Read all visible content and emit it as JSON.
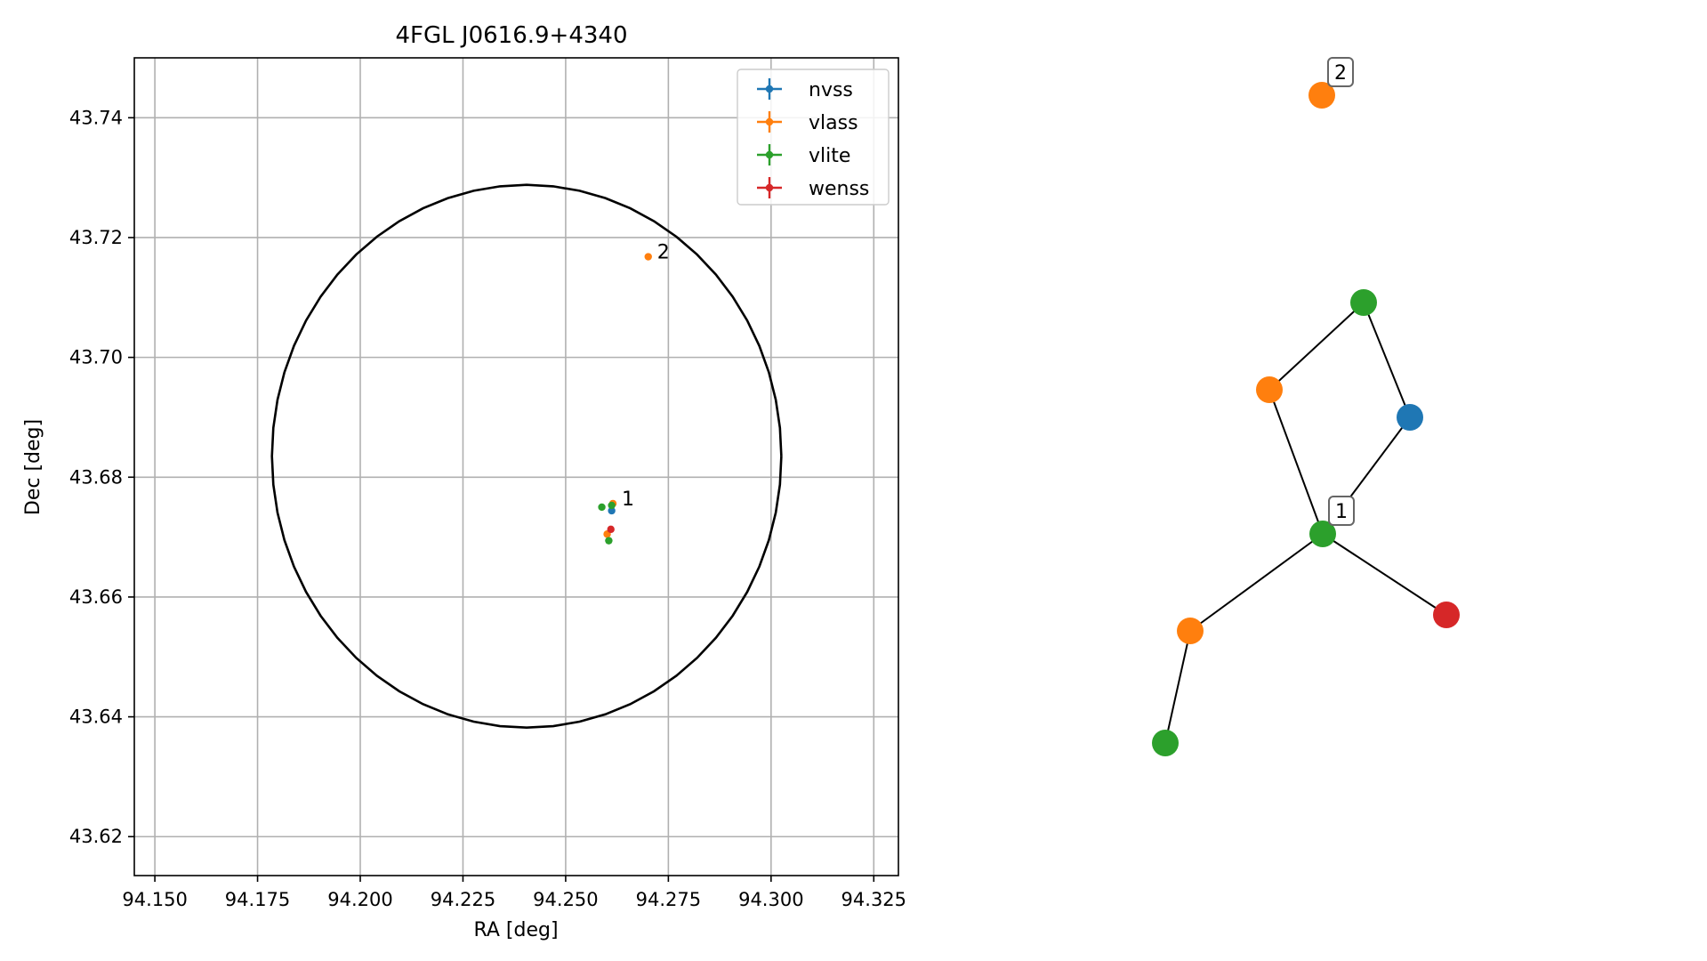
{
  "chart_data": [
    {
      "type": "scatter",
      "title": "4FGL J0616.9+4340",
      "xlabel": "RA [deg]",
      "ylabel": "Dec [deg]",
      "xlim": [
        94.145,
        94.331
      ],
      "ylim": [
        43.6135,
        43.75
      ],
      "x_ticks": [
        "94.150",
        "94.175",
        "94.200",
        "94.225",
        "94.250",
        "94.275",
        "94.300",
        "94.325"
      ],
      "y_ticks": [
        "43.62",
        "43.64",
        "43.66",
        "43.68",
        "43.70",
        "43.72",
        "43.74"
      ],
      "grid": true,
      "legend_position": "top-right",
      "localization_ellipse": {
        "center_ra": 94.2405,
        "center_dec": 43.6835,
        "semi_ra": 0.062,
        "semi_dec": 0.0453
      },
      "series": [
        {
          "name": "nvss",
          "color": "#1f77b4",
          "points": [
            {
              "x": 94.2612,
              "y": 43.6744
            }
          ]
        },
        {
          "name": "vlass",
          "color": "#ff7f0e",
          "points": [
            {
              "x": 94.2615,
              "y": 43.6756
            },
            {
              "x": 94.2601,
              "y": 43.6705
            },
            {
              "x": 94.2701,
              "y": 43.7168
            }
          ]
        },
        {
          "name": "vlite",
          "color": "#2ca02c",
          "points": [
            {
              "x": 94.2588,
              "y": 43.675
            },
            {
              "x": 94.2612,
              "y": 43.6753
            },
            {
              "x": 94.2605,
              "y": 43.6694
            }
          ]
        },
        {
          "name": "wenss",
          "color": "#d62728",
          "points": [
            {
              "x": 94.261,
              "y": 43.6713
            }
          ]
        }
      ],
      "annotations": [
        {
          "text": "1",
          "x": 94.2615,
          "y": 43.6756
        },
        {
          "text": "2",
          "x": 94.2701,
          "y": 43.7168
        }
      ]
    },
    {
      "type": "graph",
      "nodes": [
        {
          "id": "n0",
          "color": "#ff7f0e",
          "label": "2"
        },
        {
          "id": "n1",
          "color": "#2ca02c",
          "label": ""
        },
        {
          "id": "n2",
          "color": "#ff7f0e",
          "label": ""
        },
        {
          "id": "n3",
          "color": "#1f77b4",
          "label": ""
        },
        {
          "id": "n4",
          "color": "#2ca02c",
          "label": "1"
        },
        {
          "id": "n5",
          "color": "#ff7f0e",
          "label": ""
        },
        {
          "id": "n6",
          "color": "#d62728",
          "label": ""
        },
        {
          "id": "n7",
          "color": "#2ca02c",
          "label": ""
        }
      ],
      "edges": [
        [
          "n2",
          "n1"
        ],
        [
          "n1",
          "n3"
        ],
        [
          "n2",
          "n4"
        ],
        [
          "n3",
          "n4"
        ],
        [
          "n4",
          "n5"
        ],
        [
          "n4",
          "n6"
        ],
        [
          "n5",
          "n7"
        ]
      ]
    }
  ]
}
